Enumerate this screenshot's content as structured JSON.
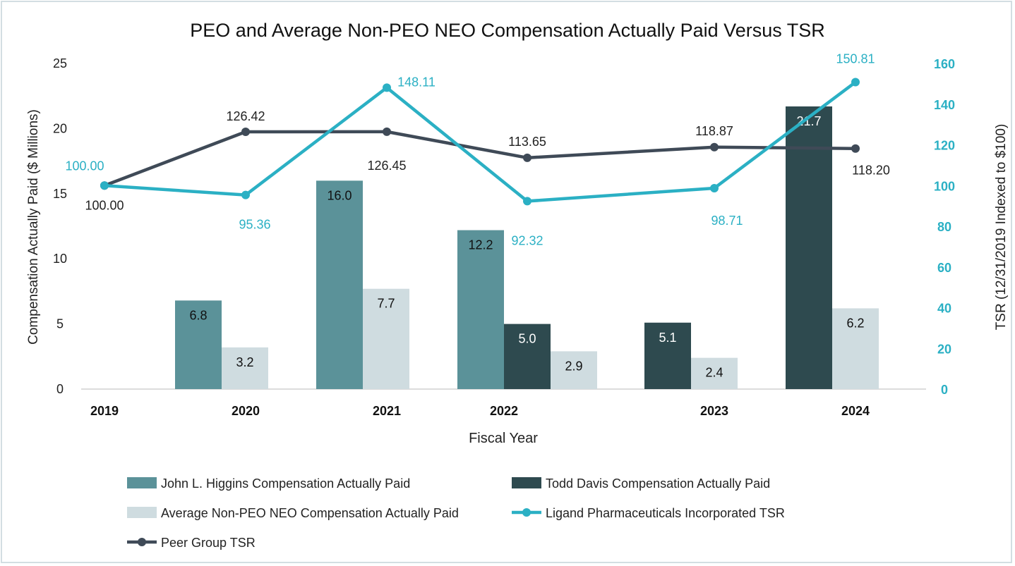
{
  "chart_data": {
    "type": "bar+line",
    "title": "PEO and Average Non-PEO NEO Compensation Actually Paid Versus TSR",
    "xlabel": "Fiscal Year",
    "ylabel": "Compensation Actually Paid ($ Millions)",
    "y2label": "TSR (12/31/2019 Indexed to $100)",
    "categories": [
      "2019",
      "2020",
      "2021",
      "2022",
      "2023",
      "2024"
    ],
    "ylim": [
      0,
      25
    ],
    "yticks": [
      0,
      5,
      10,
      15,
      20,
      25
    ],
    "y2lim": [
      0,
      160
    ],
    "y2ticks": [
      0,
      20,
      40,
      60,
      80,
      100,
      120,
      140,
      160
    ],
    "grid": false,
    "legend_position": "bottom",
    "bar_series": [
      {
        "name": "John L. Higgins Compensation Actually Paid",
        "color": "#5b9299",
        "values": [
          null,
          6.8,
          16.0,
          12.2,
          null,
          null
        ]
      },
      {
        "name": "Todd Davis Compensation Actually Paid",
        "color": "#2e4a4f",
        "values": [
          null,
          null,
          null,
          5.0,
          5.1,
          21.7
        ]
      },
      {
        "name": "Average Non-PEO NEO Compensation Actually Paid",
        "color": "#cfdce0",
        "values": [
          null,
          3.2,
          7.7,
          2.9,
          2.4,
          6.2
        ]
      }
    ],
    "line_series": [
      {
        "name": "Ligand Pharmaceuticals Incorporated TSR",
        "color": "#2bb0c4",
        "axis": "right",
        "values": [
          100.0,
          95.36,
          148.11,
          92.32,
          98.71,
          150.81
        ],
        "labels": [
          "100.00",
          "95.36",
          "148.11",
          "92.32",
          "98.71",
          "150.81"
        ]
      },
      {
        "name": "Peer Group TSR",
        "color": "#3f4a57",
        "axis": "right",
        "values": [
          100.0,
          126.42,
          126.45,
          113.65,
          118.87,
          118.2
        ],
        "labels": [
          "100.00",
          "126.42",
          "126.45",
          "113.65",
          "118.87",
          "118.20"
        ]
      }
    ]
  }
}
